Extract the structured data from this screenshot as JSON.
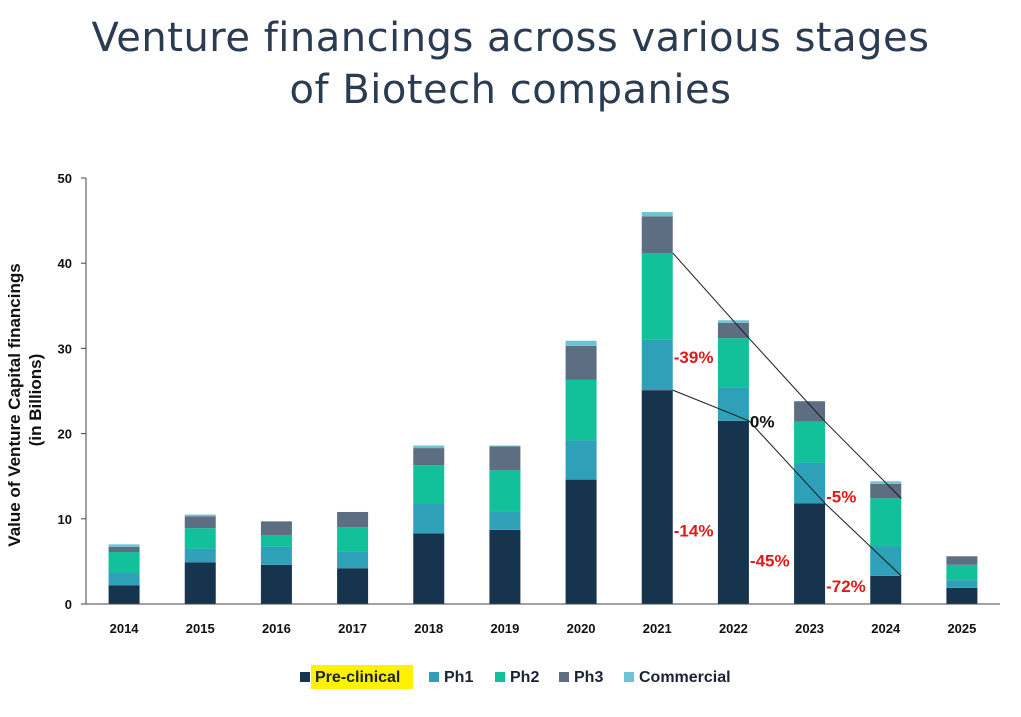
{
  "chart_data": {
    "type": "bar",
    "stacked": true,
    "title_lines": [
      "Venture financings across various stages",
      "of Biotech companies"
    ],
    "ylabel_lines": [
      "Value of Venture Capital financings",
      "(in Billions)"
    ],
    "xlabel": "",
    "ylim": [
      0,
      50
    ],
    "yticks": [
      0,
      10,
      20,
      30,
      40,
      50
    ],
    "categories": [
      "2014",
      "2015",
      "2016",
      "2017",
      "2018",
      "2019",
      "2020",
      "2021",
      "2022",
      "2023",
      "2024",
      "2025"
    ],
    "series": [
      {
        "name": "Pre-clinical",
        "color": "#17344f",
        "values": [
          2.2,
          4.9,
          4.6,
          4.2,
          8.3,
          8.7,
          14.6,
          25.1,
          21.5,
          11.8,
          3.3,
          1.9
        ]
      },
      {
        "name": "Ph1",
        "color": "#2ea1b8",
        "values": [
          1.5,
          1.6,
          2.1,
          2.0,
          3.5,
          2.2,
          4.6,
          5.9,
          3.9,
          4.8,
          3.5,
          0.9
        ]
      },
      {
        "name": "Ph2",
        "color": "#12c09a",
        "values": [
          2.4,
          2.4,
          1.4,
          2.8,
          4.5,
          4.8,
          7.1,
          10.2,
          5.8,
          4.8,
          5.6,
          1.8
        ]
      },
      {
        "name": "Ph3",
        "color": "#5e6e82",
        "values": [
          0.6,
          1.4,
          1.6,
          1.8,
          2.0,
          2.8,
          4.0,
          4.3,
          1.8,
          2.4,
          1.7,
          1.0
        ]
      },
      {
        "name": "Commercial",
        "color": "#6cc4d2",
        "values": [
          0.3,
          0.2,
          0.0,
          0.0,
          0.3,
          0.1,
          0.6,
          0.5,
          0.3,
          0.0,
          0.3,
          0.0
        ]
      }
    ],
    "legend": {
      "position": "bottom",
      "highlighted": "Pre-clinical",
      "highlight_color": "#fff200"
    },
    "annotations": [
      {
        "text": "-39%",
        "color": "#e11919",
        "x": "2021",
        "y": 29.0,
        "side": "right"
      },
      {
        "text": "0%",
        "color": "#111111",
        "x": "2022",
        "y": 21.4,
        "side": "right"
      },
      {
        "text": "-5%",
        "color": "#e11919",
        "x": "2023",
        "y": 12.6,
        "side": "right"
      },
      {
        "text": "-14%",
        "color": "#e11919",
        "x": "2021",
        "y": 8.6,
        "side": "right"
      },
      {
        "text": "-45%",
        "color": "#e11919",
        "x": "2022",
        "y": 5.1,
        "side": "right"
      },
      {
        "text": "-72%",
        "color": "#e11919",
        "x": "2023",
        "y": 2.1,
        "side": "right"
      }
    ],
    "trend_lines": [
      {
        "from": [
          "2021",
          41.2
        ],
        "to": [
          "2022",
          31.2
        ]
      },
      {
        "from": [
          "2022",
          31.2
        ],
        "to": [
          "2023",
          21.4
        ]
      },
      {
        "from": [
          "2023",
          21.4
        ],
        "to": [
          "2024",
          12.4
        ]
      },
      {
        "from": [
          "2021",
          25.1
        ],
        "to": [
          "2022",
          21.5
        ]
      },
      {
        "from": [
          "2022",
          21.5
        ],
        "to": [
          "2023",
          11.8
        ]
      },
      {
        "from": [
          "2023",
          11.8
        ],
        "to": [
          "2024",
          3.3
        ]
      }
    ]
  }
}
